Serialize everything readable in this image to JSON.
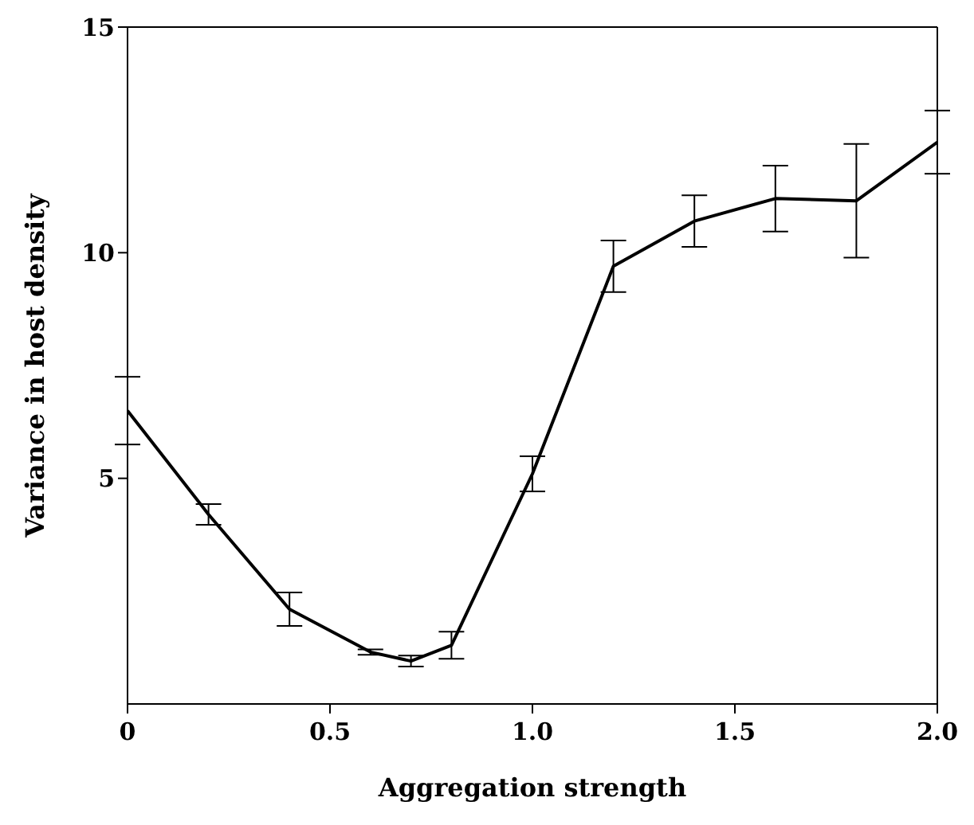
{
  "chart_data": {
    "type": "line",
    "xlabel": "Aggregation strength",
    "ylabel": "Variance in host density",
    "x": [
      0,
      0.2,
      0.4,
      0.6,
      0.7,
      0.8,
      1.0,
      1.2,
      1.4,
      1.6,
      1.8,
      2.0
    ],
    "series": [
      {
        "color": "#000000",
        "values": [
          6.5,
          4.2,
          2.1,
          1.15,
          0.95,
          1.3,
          5.1,
          9.7,
          10.7,
          11.2,
          11.15,
          12.45
        ],
        "errors": [
          0.75,
          0.23,
          0.37,
          0.06,
          0.12,
          0.3,
          0.39,
          0.57,
          0.57,
          0.73,
          1.26,
          0.7
        ]
      }
    ],
    "xlim": [
      0,
      2
    ],
    "xticks": [
      0,
      {
        "value": 0.5,
        "label": "0.5"
      },
      {
        "value": 1,
        "label": "1.0"
      },
      {
        "value": 1.5,
        "label": "1.5"
      },
      {
        "value": 2,
        "label": "2.0"
      }
    ],
    "ylim": [
      0,
      15
    ],
    "yticks": [
      5,
      10,
      15
    ],
    "grid": false,
    "legend": false,
    "marker": "none",
    "line_style": "solid"
  }
}
